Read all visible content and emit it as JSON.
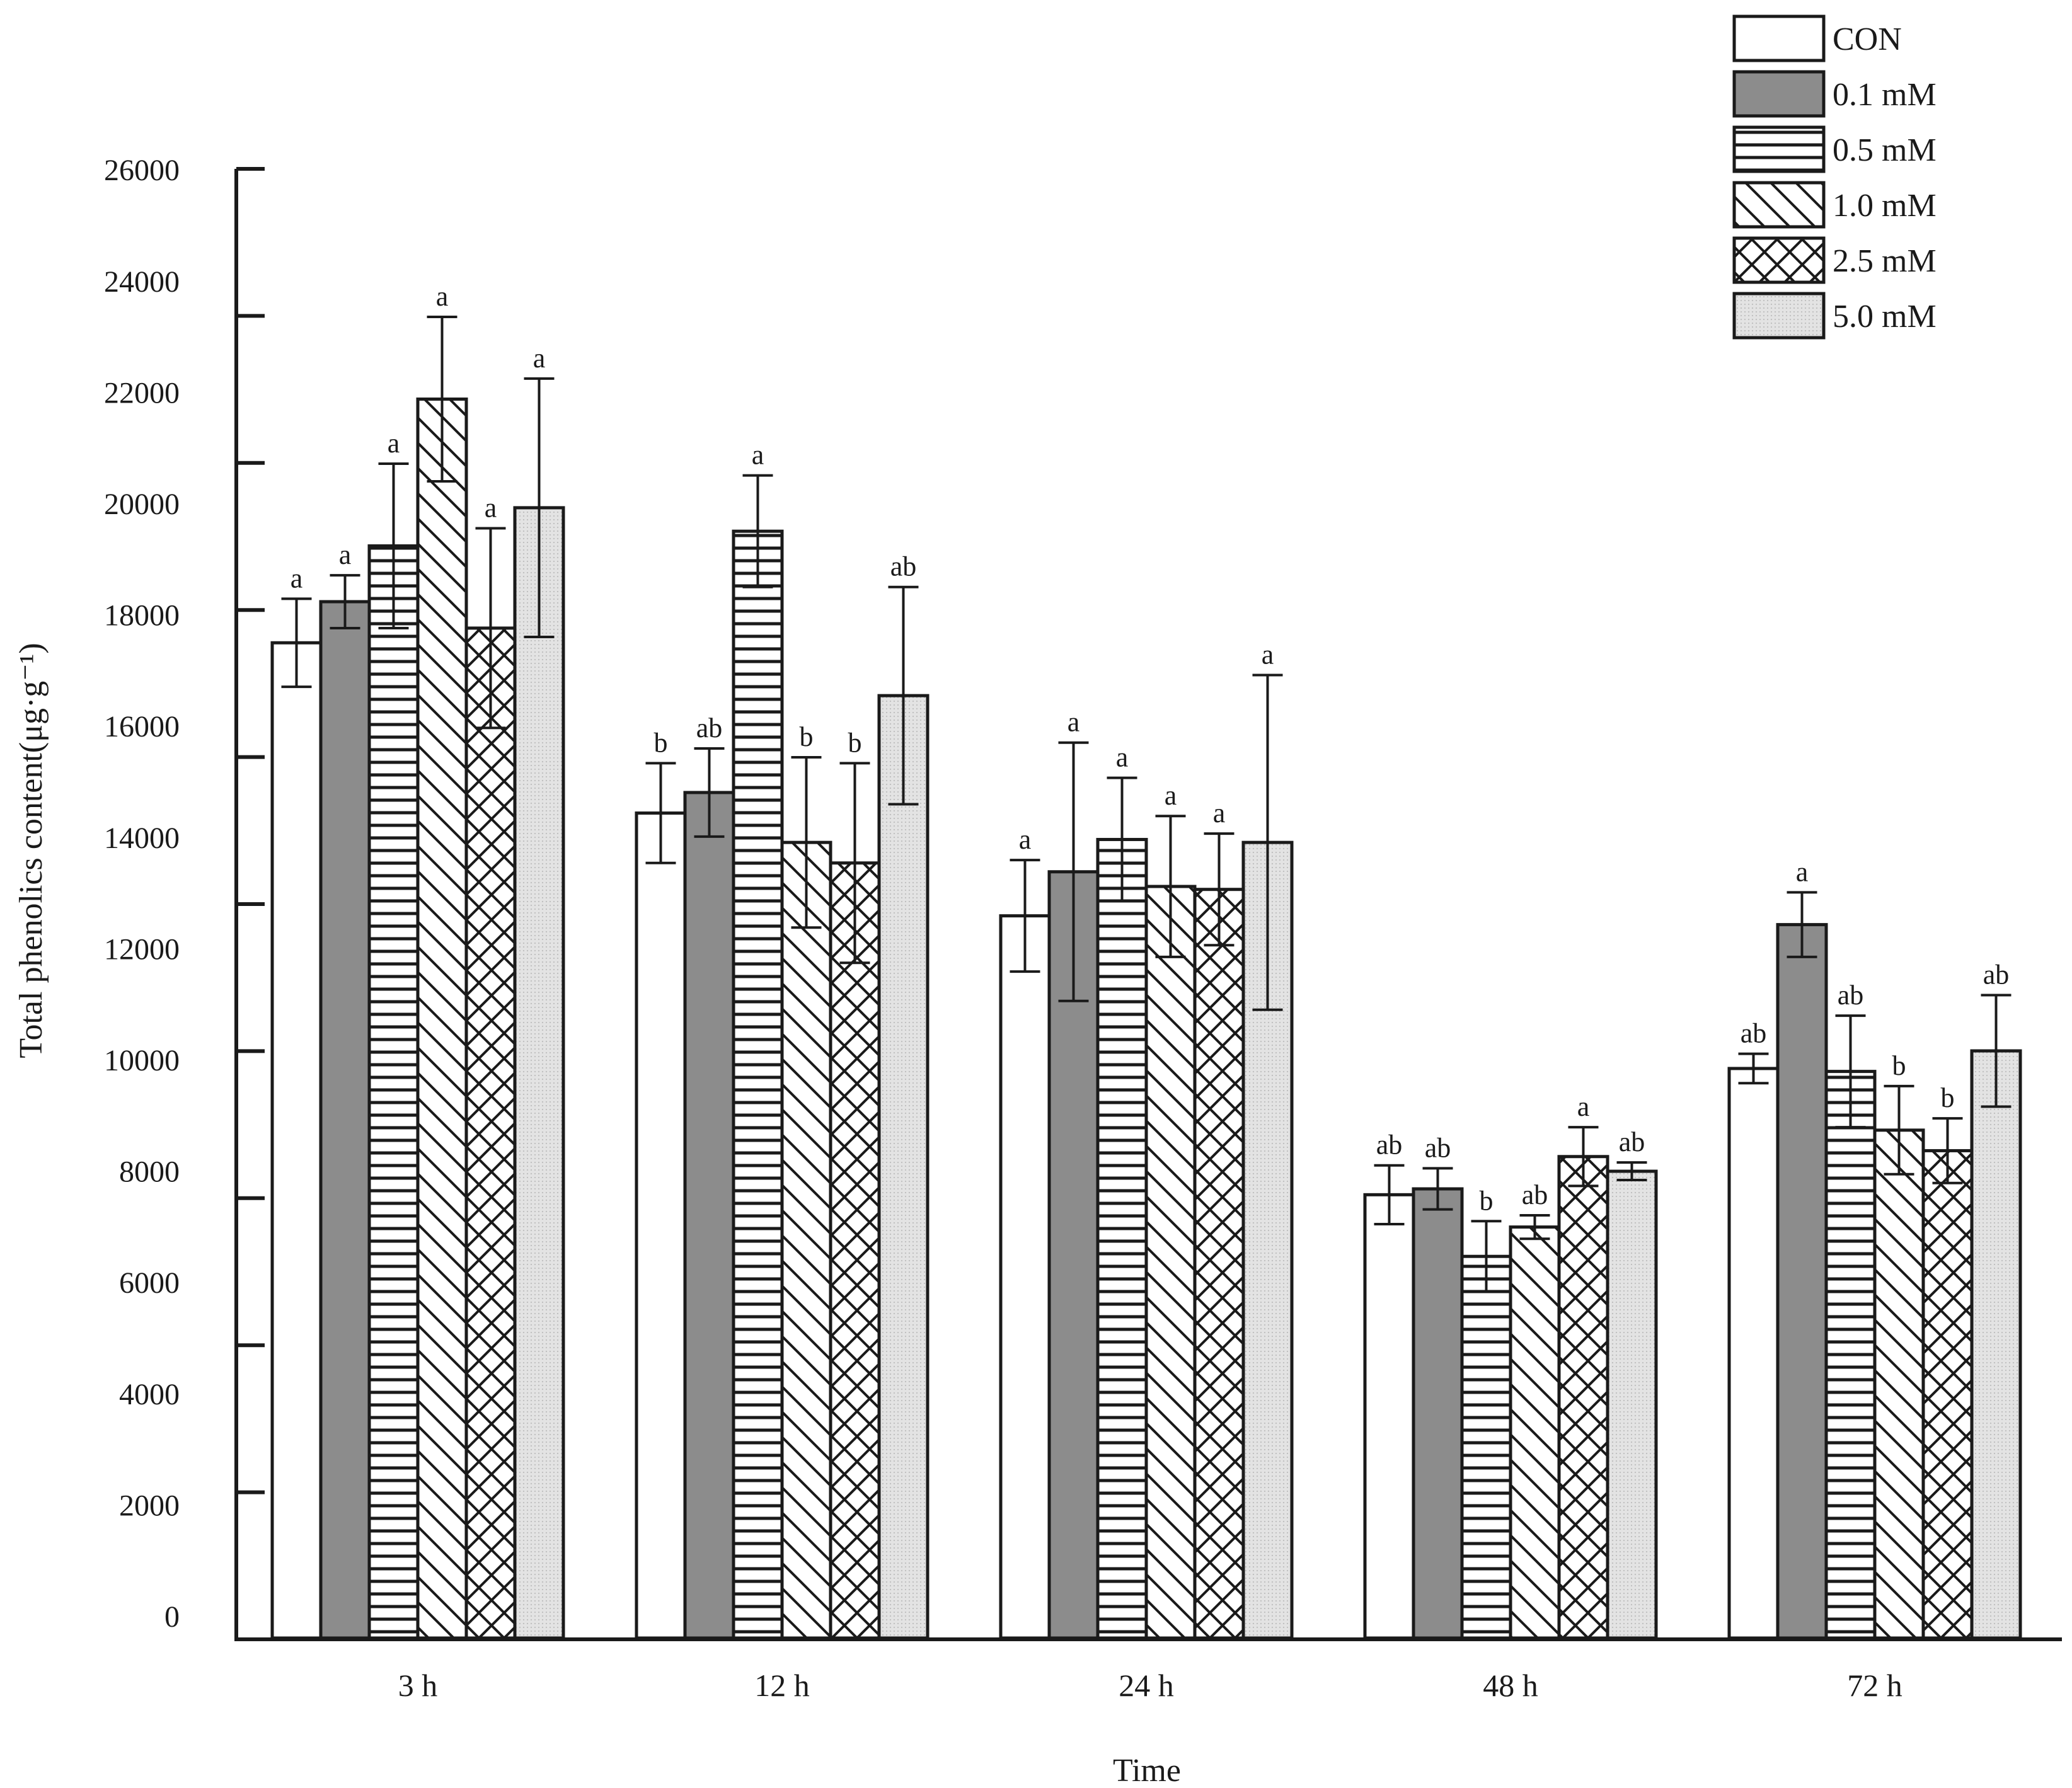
{
  "chart_data": {
    "type": "bar",
    "title": "",
    "xlabel": "Time",
    "ylabel": "Total phenolics content(μg·g⁻¹)",
    "ylim": [
      0,
      25000
    ],
    "ytick_labels": [
      "0",
      "2000",
      "4000",
      "6000",
      "8000",
      "10000",
      "12000",
      "14000",
      "16000",
      "18000",
      "20000",
      "22000",
      "24000",
      "26000"
    ],
    "categories": [
      "3 h",
      "12 h",
      "24 h",
      "48 h",
      "72 h"
    ],
    "legend_position": "top-right",
    "series": [
      {
        "name": "CON",
        "pattern": "open",
        "values": [
          16950,
          14050,
          12300,
          7550,
          9700
        ],
        "errors": [
          750,
          850,
          950,
          500,
          250
        ],
        "letters": [
          "a",
          "b",
          "a",
          "ab",
          "ab"
        ]
      },
      {
        "name": "0.1 mM",
        "pattern": "dark",
        "values": [
          17650,
          14400,
          13050,
          7650,
          12150
        ],
        "errors": [
          450,
          750,
          2200,
          350,
          550
        ],
        "letters": [
          "a",
          "ab",
          "a",
          "ab",
          "a"
        ]
      },
      {
        "name": "0.5 mM",
        "pattern": "horizontal",
        "values": [
          18600,
          18850,
          13600,
          6500,
          9650
        ],
        "errors": [
          1400,
          950,
          1050,
          600,
          950
        ],
        "letters": [
          "a",
          "a",
          "a",
          "b",
          "ab"
        ]
      },
      {
        "name": "1.0 mM",
        "pattern": "diagonal",
        "values": [
          21100,
          13550,
          12800,
          7000,
          8650
        ],
        "errors": [
          1400,
          1450,
          1200,
          200,
          750
        ],
        "letters": [
          "a",
          "b",
          "a",
          "ab",
          "b"
        ]
      },
      {
        "name": "2.5 mM",
        "pattern": "cross",
        "values": [
          17200,
          13200,
          12750,
          8200,
          8300
        ],
        "errors": [
          1700,
          1700,
          950,
          500,
          550
        ],
        "letters": [
          "a",
          "b",
          "a",
          "a",
          "b"
        ]
      },
      {
        "name": "5.0 mM",
        "pattern": "dotted",
        "values": [
          19250,
          16050,
          13550,
          7950,
          10000
        ],
        "errors": [
          2200,
          1850,
          2850,
          150,
          950
        ],
        "letters": [
          "a",
          "ab",
          "a",
          "ab",
          "ab"
        ]
      }
    ],
    "colors": {
      "dark": "#8c8c8c",
      "dotted": "#e2e2e2",
      "line": "#1a1a1a",
      "open": "#ffffff"
    }
  }
}
